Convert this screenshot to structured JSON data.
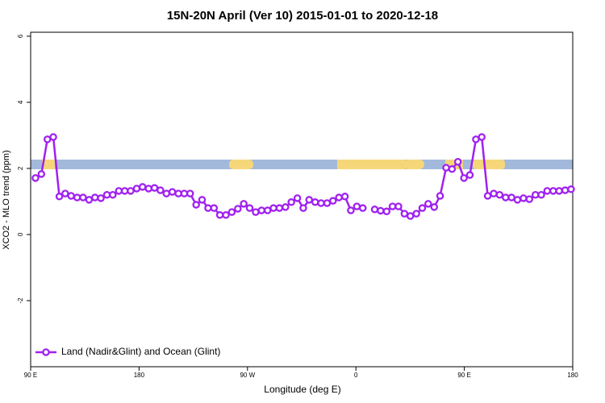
{
  "chart_data": {
    "type": "line",
    "title": "15N-20N April (Ver 10)   2015-01-01 to 2020-12-18",
    "x_label": "Longitude (deg E)",
    "y_label": "XCO2 - MLO trend (ppm)",
    "xlim": [
      90,
      540
    ],
    "xticks": [
      {
        "value": 90,
        "label": "90 E"
      },
      180,
      {
        "value": 270,
        "label": "90 W"
      },
      {
        "value": 360,
        "label": "0"
      },
      {
        "value": 450,
        "label": "90 E"
      },
      {
        "value": 540,
        "label": "180"
      }
    ],
    "ylim": [
      -4,
      6.12
    ],
    "yticks": [
      -2,
      0,
      2,
      4,
      6
    ],
    "legend": "bottom-left",
    "x": [
      94,
      98.9,
      103.9,
      108.8,
      113.8,
      118.7,
      123.6,
      128.6,
      133.5,
      138.5,
      143.4,
      148.3,
      153.3,
      158.2,
      163.2,
      168.1,
      173.0,
      178.0,
      182.9,
      187.9,
      192.8,
      197.7,
      202.7,
      207.6,
      212.6,
      217.5,
      222.4,
      227.4,
      232.3,
      237.3,
      242.2,
      247.1,
      252.1,
      257.0,
      262.0,
      266.9,
      271.8,
      276.8,
      281.7,
      286.7,
      291.6,
      296.5,
      301.5,
      306.4,
      311.4,
      316.3,
      321.2,
      326.2,
      331.1,
      336.1,
      341.0,
      345.9,
      350.9,
      355.8,
      360.8,
      365.7,
      370.6,
      375.6,
      380.5,
      385.5,
      390.4,
      395.3,
      400.3,
      405.2,
      410.2,
      415.1,
      420.0,
      425.0,
      429.9,
      434.9,
      439.8,
      444.7,
      449.7,
      454.6,
      459.6,
      464.5,
      469.4,
      474.4,
      479.3,
      484.3,
      489.2,
      494.1,
      499.1,
      504.0,
      509.0,
      513.9,
      518.8,
      523.8,
      528.7,
      533.7,
      538.6
    ],
    "series": [
      {
        "name": "Land (Nadir&Glint) and Ocean (Glint)",
        "color": "#a020f0",
        "values": [
          1.71,
          1.83,
          2.88,
          2.95,
          1.15,
          1.24,
          1.17,
          1.12,
          1.12,
          1.05,
          1.12,
          1.1,
          1.2,
          1.2,
          1.32,
          1.32,
          1.32,
          1.39,
          1.44,
          1.39,
          1.41,
          1.34,
          1.24,
          1.29,
          1.24,
          1.24,
          1.24,
          0.9,
          1.05,
          0.8,
          0.8,
          0.59,
          0.59,
          0.68,
          0.78,
          0.93,
          0.8,
          0.68,
          0.73,
          0.73,
          0.8,
          0.8,
          0.83,
          0.98,
          1.1,
          0.8,
          1.05,
          0.98,
          0.95,
          0.95,
          1.02,
          1.12,
          1.15,
          0.73,
          0.85,
          0.8,
          null,
          0.76,
          0.72,
          0.7,
          0.85,
          0.85,
          0.63,
          0.56,
          0.63,
          0.8,
          0.93,
          0.83,
          1.17,
          2.02,
          1.98,
          2.2,
          1.71,
          1.8,
          2.88,
          2.95,
          1.17,
          1.24,
          1.2,
          1.12,
          1.12,
          1.05,
          1.1,
          1.07,
          1.2,
          1.2,
          1.32,
          1.32,
          1.32,
          1.34,
          1.37
        ]
      }
    ]
  }
}
